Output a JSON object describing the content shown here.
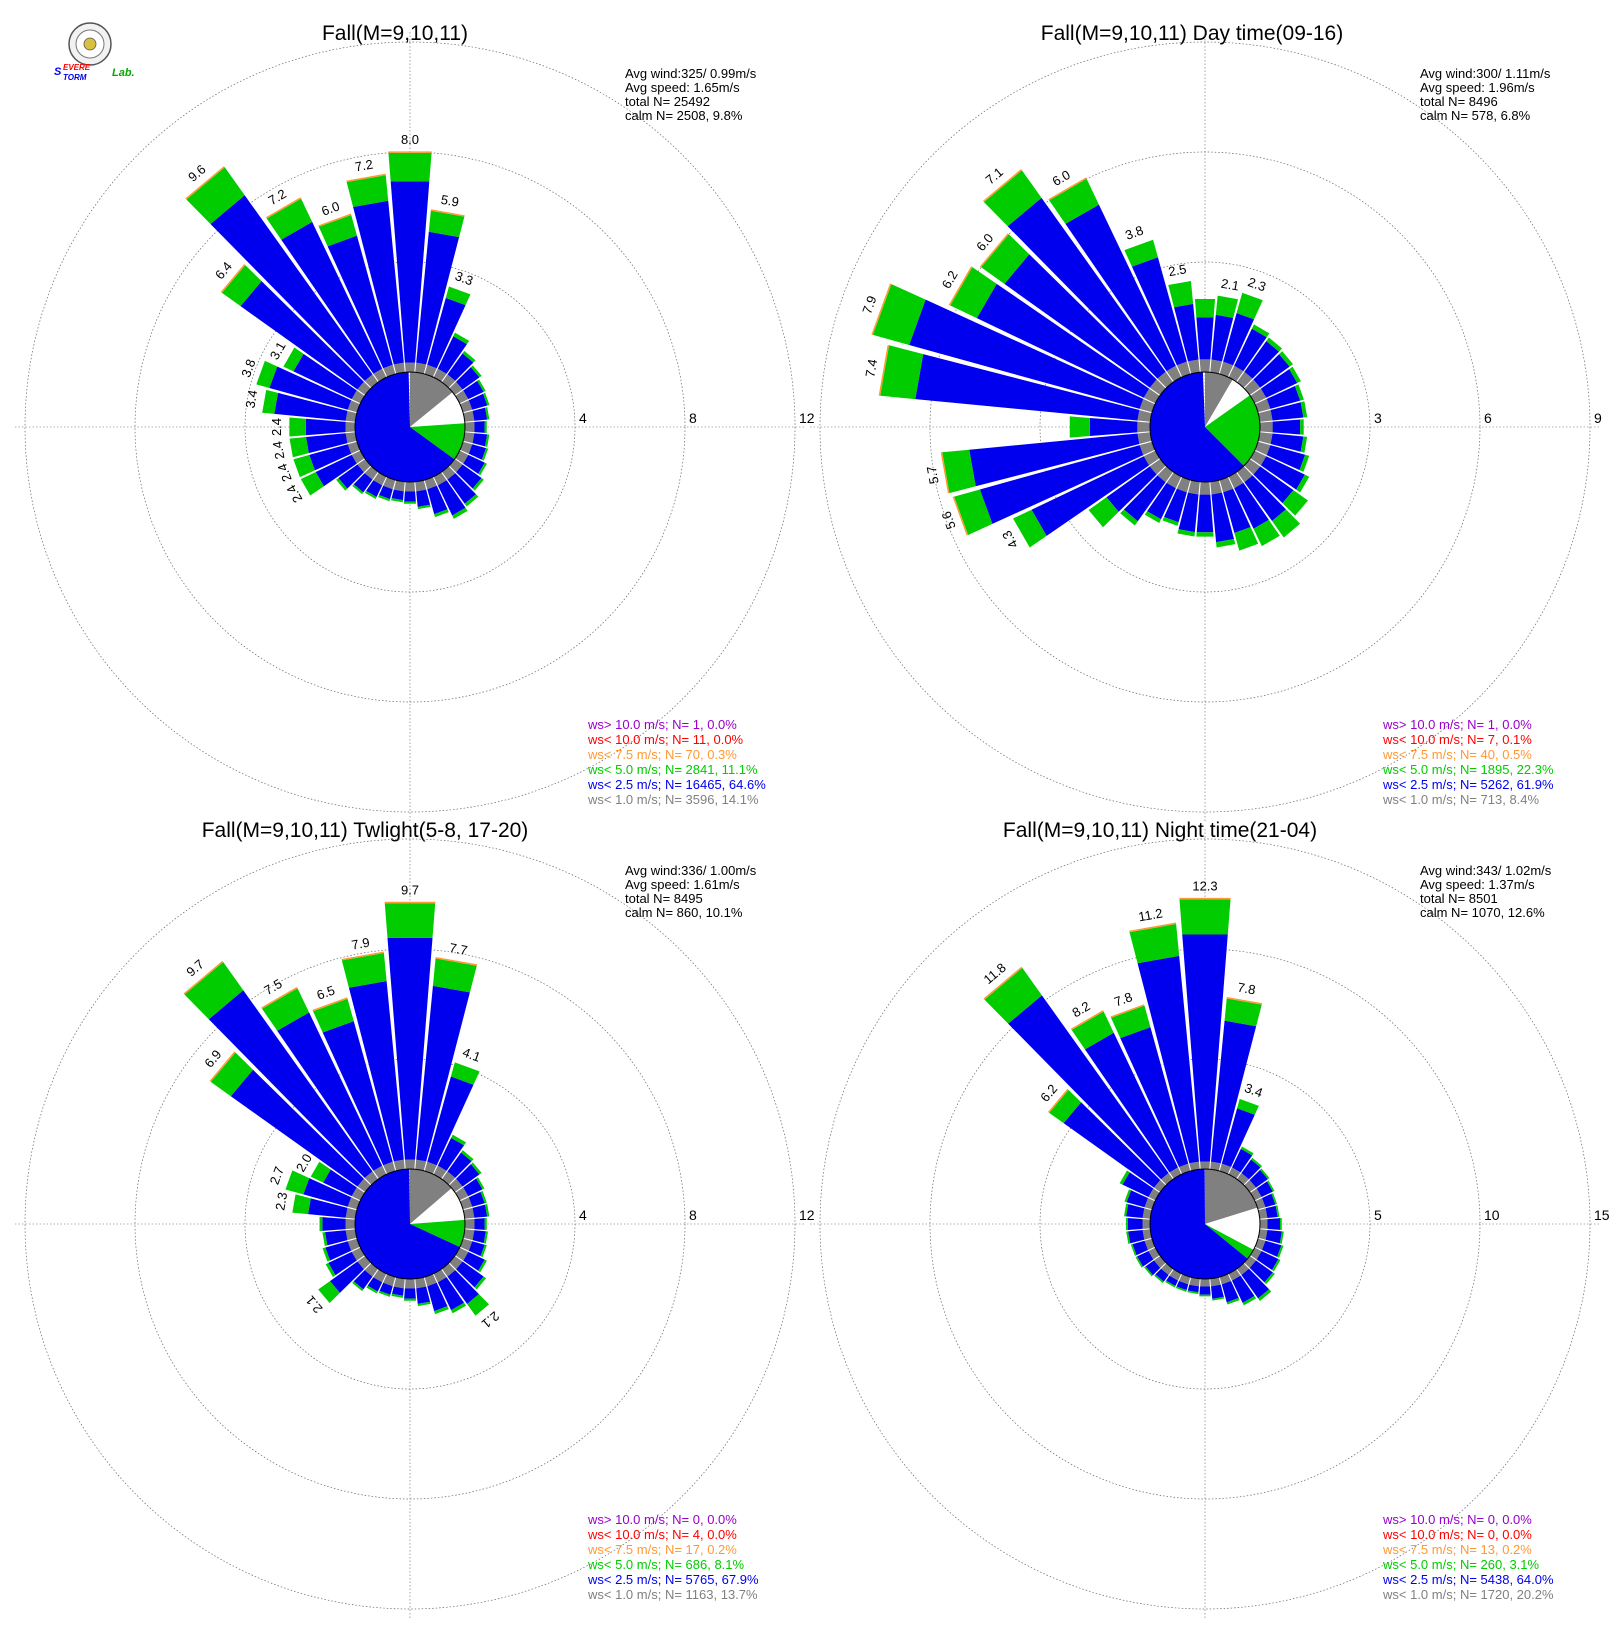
{
  "logo": {
    "text_s": "S",
    "text_severe": "EVERE",
    "text_storm": "TORM",
    "text_lab": "Lab."
  },
  "colors": {
    "gt10": "#9900cc",
    "lt10": "#ff0000",
    "lt75": "#ff9933",
    "lt5": "#00cc00",
    "lt25": "#0000ee",
    "lt1": "#808080",
    "ring": "#666666"
  },
  "chart_data": [
    {
      "type": "polar-bar",
      "title": "Fall(M=9,10,11)",
      "stats": {
        "avg_wind": "Avg wind:325/ 0.99m/s",
        "avg_speed": "Avg speed: 1.65m/s",
        "total": "total N=       25492",
        "calm": "calm N=   2508,   9.8%"
      },
      "rmax": 12,
      "ticks": [
        "4",
        "8",
        "12"
      ],
      "legend": [
        "ws> 10.0 m/s; N=     1,  0.0%",
        "ws< 10.0 m/s; N=    11,  0.0%",
        "ws<  7.5 m/s; N=    70,  0.3%",
        "ws<  5.0 m/s; N=  2841, 11.1%",
        "ws<  2.5 m/s; N= 16465, 64.6%",
        "ws<  1.0 m/s; N=  3596, 14.1%"
      ],
      "pie": {
        "gray": 14.1,
        "white": 9.8,
        "green": 11.1,
        "blue": 64.6
      },
      "bars": [
        {
          "dir": 0,
          "total": 8.0,
          "label": "8.0"
        },
        {
          "dir": 10,
          "total": 5.9,
          "label": "5.9"
        },
        {
          "dir": 20,
          "total": 3.3,
          "label": "3.3"
        },
        {
          "dir": 30,
          "total": 1.8
        },
        {
          "dir": 40,
          "total": 1.4
        },
        {
          "dir": 50,
          "total": 1.2
        },
        {
          "dir": 60,
          "total": 1.05
        },
        {
          "dir": 70,
          "total": 1.0
        },
        {
          "dir": 80,
          "total": 0.9
        },
        {
          "dir": 90,
          "total": 0.8
        },
        {
          "dir": 100,
          "total": 0.9
        },
        {
          "dir": 110,
          "total": 0.95
        },
        {
          "dir": 120,
          "total": 1.1
        },
        {
          "dir": 130,
          "total": 1.3
        },
        {
          "dir": 140,
          "total": 1.55
        },
        {
          "dir": 150,
          "total": 1.7
        },
        {
          "dir": 160,
          "total": 1.4
        },
        {
          "dir": 170,
          "total": 1.0
        },
        {
          "dir": 180,
          "total": 0.8
        },
        {
          "dir": 190,
          "total": 0.75
        },
        {
          "dir": 200,
          "total": 0.8
        },
        {
          "dir": 210,
          "total": 0.9
        },
        {
          "dir": 220,
          "total": 1.0
        },
        {
          "dir": 230,
          "total": 1.3
        },
        {
          "dir": 240,
          "total": 2.4,
          "label": "2.4"
        },
        {
          "dir": 250,
          "total": 2.4,
          "label": "2.4"
        },
        {
          "dir": 260,
          "total": 2.4,
          "label": "2.4"
        },
        {
          "dir": 270,
          "total": 2.4,
          "label": "2.4"
        },
        {
          "dir": 280,
          "total": 3.4,
          "label": "3.4"
        },
        {
          "dir": 290,
          "total": 3.8,
          "label": "3.8"
        },
        {
          "dir": 300,
          "total": 3.1,
          "label": "3.1"
        },
        {
          "dir": 310,
          "total": 6.4,
          "label": "6.4"
        },
        {
          "dir": 320,
          "total": 9.6,
          "label": "9.6"
        },
        {
          "dir": 330,
          "total": 7.2,
          "label": "7.2"
        },
        {
          "dir": 340,
          "total": 6.0,
          "label": "6.0"
        },
        {
          "dir": 350,
          "total": 7.2,
          "label": "7.2"
        }
      ]
    },
    {
      "type": "polar-bar",
      "title": "Fall(M=9,10,11) Day time(09-16)",
      "stats": {
        "avg_wind": "Avg wind:300/ 1.11m/s",
        "avg_speed": "Avg speed: 1.96m/s",
        "total": "total N=         8496",
        "calm": "calm N=     578,   6.8%"
      },
      "rmax": 9,
      "ticks": [
        "3",
        "6",
        "9"
      ],
      "legend": [
        "ws> 10.0 m/s; N=     1,  0.0%",
        "ws< 10.0 m/s; N=     7,  0.1%",
        "ws<  7.5 m/s; N=    40,  0.5%",
        "ws<  5.0 m/s; N=  1895, 22.3%",
        "ws<  2.5 m/s; N=  5262, 61.9%",
        "ws<  1.0 m/s; N=   713,  8.4%"
      ],
      "pie": {
        "gray": 8.4,
        "white": 6.8,
        "green": 22.3,
        "blue": 61.9
      },
      "bars": [
        {
          "dir": 0,
          "total": 2.0
        },
        {
          "dir": 10,
          "total": 2.1,
          "label": "2.1"
        },
        {
          "dir": 20,
          "total": 2.3,
          "label": "2.3"
        },
        {
          "dir": 30,
          "total": 1.6
        },
        {
          "dir": 40,
          "total": 1.5
        },
        {
          "dir": 50,
          "total": 1.45
        },
        {
          "dir": 60,
          "total": 1.4
        },
        {
          "dir": 70,
          "total": 1.3
        },
        {
          "dir": 80,
          "total": 1.3
        },
        {
          "dir": 90,
          "total": 1.2
        },
        {
          "dir": 100,
          "total": 1.3
        },
        {
          "dir": 110,
          "total": 1.45
        },
        {
          "dir": 120,
          "total": 1.65
        },
        {
          "dir": 130,
          "total": 1.95
        },
        {
          "dir": 140,
          "total": 2.2
        },
        {
          "dir": 150,
          "total": 2.1
        },
        {
          "dir": 160,
          "total": 2.0
        },
        {
          "dir": 170,
          "total": 1.8
        },
        {
          "dir": 180,
          "total": 1.5
        },
        {
          "dir": 190,
          "total": 1.5
        },
        {
          "dir": 200,
          "total": 1.3
        },
        {
          "dir": 210,
          "total": 1.4
        },
        {
          "dir": 220,
          "total": 1.8
        },
        {
          "dir": 230,
          "total": 2.4
        },
        {
          "dir": 240,
          "total": 4.3,
          "label": "4.3"
        },
        {
          "dir": 250,
          "total": 5.6,
          "label": "5.6"
        },
        {
          "dir": 260,
          "total": 5.7,
          "label": "5.7"
        },
        {
          "dir": 270,
          "total": 2.2
        },
        {
          "dir": 280,
          "total": 7.4,
          "label": "7.4"
        },
        {
          "dir": 290,
          "total": 7.9,
          "label": "7.9"
        },
        {
          "dir": 300,
          "total": 6.2,
          "label": "6.2"
        },
        {
          "dir": 310,
          "total": 6.0,
          "label": "6.0"
        },
        {
          "dir": 320,
          "total": 7.1,
          "label": "7.1"
        },
        {
          "dir": 330,
          "total": 6.0,
          "label": "6.0"
        },
        {
          "dir": 340,
          "total": 3.8,
          "label": "3.8"
        },
        {
          "dir": 350,
          "total": 2.5,
          "label": "2.5"
        }
      ]
    },
    {
      "type": "polar-bar",
      "title": "Fall(M=9,10,11) Twlight(5-8, 17-20)",
      "stats": {
        "avg_wind": "Avg wind:336/ 1.00m/s",
        "avg_speed": "Avg speed: 1.61m/s",
        "total": "total N=         8495",
        "calm": "calm N=     860,  10.1%"
      },
      "rmax": 12,
      "ticks": [
        "4",
        "8",
        "12"
      ],
      "legend": [
        "ws> 10.0 m/s; N=     0,  0.0%",
        "ws< 10.0 m/s; N=     4,  0.0%",
        "ws<  7.5 m/s; N=    17,  0.2%",
        "ws<  5.0 m/s; N=   686,  8.1%",
        "ws<  2.5 m/s; N=  5765, 67.9%",
        "ws<  1.0 m/s; N=  1163, 13.7%"
      ],
      "pie": {
        "gray": 13.7,
        "white": 10.1,
        "green": 8.1,
        "blue": 67.9
      },
      "bars": [
        {
          "dir": 0,
          "total": 9.7,
          "label": "9.7"
        },
        {
          "dir": 10,
          "total": 7.7,
          "label": "7.7"
        },
        {
          "dir": 20,
          "total": 4.1,
          "label": "4.1"
        },
        {
          "dir": 30,
          "total": 1.6
        },
        {
          "dir": 40,
          "total": 1.3
        },
        {
          "dir": 50,
          "total": 1.2
        },
        {
          "dir": 60,
          "total": 1.0
        },
        {
          "dir": 70,
          "total": 0.9
        },
        {
          "dir": 80,
          "total": 0.9
        },
        {
          "dir": 90,
          "total": 0.8
        },
        {
          "dir": 100,
          "total": 0.85
        },
        {
          "dir": 110,
          "total": 0.9
        },
        {
          "dir": 120,
          "total": 1.1
        },
        {
          "dir": 130,
          "total": 1.4
        },
        {
          "dir": 140,
          "total": 2.1,
          "label": "2.1"
        },
        {
          "dir": 150,
          "total": 1.6
        },
        {
          "dir": 160,
          "total": 1.4
        },
        {
          "dir": 170,
          "total": 1.0
        },
        {
          "dir": 180,
          "total": 0.8
        },
        {
          "dir": 190,
          "total": 0.7
        },
        {
          "dir": 200,
          "total": 0.75
        },
        {
          "dir": 210,
          "total": 0.8
        },
        {
          "dir": 220,
          "total": 1.0
        },
        {
          "dir": 230,
          "total": 2.1,
          "label": "2.1"
        },
        {
          "dir": 240,
          "total": 1.4
        },
        {
          "dir": 250,
          "total": 1.3
        },
        {
          "dir": 260,
          "total": 1.2
        },
        {
          "dir": 270,
          "total": 1.3
        },
        {
          "dir": 280,
          "total": 2.3,
          "label": "2.3"
        },
        {
          "dir": 290,
          "total": 2.7,
          "label": "2.7"
        },
        {
          "dir": 300,
          "total": 2.0,
          "label": "2.0"
        },
        {
          "dir": 310,
          "total": 6.9,
          "label": "6.9"
        },
        {
          "dir": 320,
          "total": 9.7,
          "label": "9.7"
        },
        {
          "dir": 330,
          "total": 7.5,
          "label": "7.5"
        },
        {
          "dir": 340,
          "total": 6.5,
          "label": "6.5"
        },
        {
          "dir": 350,
          "total": 7.9,
          "label": "7.9"
        }
      ]
    },
    {
      "type": "polar-bar",
      "title": "Fall(M=9,10,11) Night time(21-04)",
      "stats": {
        "avg_wind": "Avg wind:343/ 1.02m/s",
        "avg_speed": "Avg speed: 1.37m/s",
        "total": "total N=         8501",
        "calm": "calm N=   1070,  12.6%"
      },
      "rmax": 15,
      "ticks": [
        "5",
        "10",
        "15"
      ],
      "legend": [
        "ws> 10.0 m/s; N=     0,  0.0%",
        "ws< 10.0 m/s; N=     0,  0.0%",
        "ws<  7.5 m/s; N=    13,  0.2%",
        "ws<  5.0 m/s; N=   260,  3.1%",
        "ws<  2.5 m/s; N=  5438, 64.0%",
        "ws<  1.0 m/s; N=  1720, 20.2%"
      ],
      "pie": {
        "gray": 20.2,
        "white": 12.6,
        "green": 3.1,
        "blue": 64.0
      },
      "bars": [
        {
          "dir": 0,
          "total": 12.3,
          "label": "12.3"
        },
        {
          "dir": 10,
          "total": 7.8,
          "label": "7.8"
        },
        {
          "dir": 20,
          "total": 3.4,
          "label": "3.4"
        },
        {
          "dir": 30,
          "total": 1.4
        },
        {
          "dir": 40,
          "total": 1.2
        },
        {
          "dir": 50,
          "total": 1.1
        },
        {
          "dir": 60,
          "total": 1.0
        },
        {
          "dir": 70,
          "total": 0.9
        },
        {
          "dir": 80,
          "total": 0.9
        },
        {
          "dir": 90,
          "total": 1.0
        },
        {
          "dir": 100,
          "total": 1.1
        },
        {
          "dir": 110,
          "total": 1.2
        },
        {
          "dir": 120,
          "total": 1.3
        },
        {
          "dir": 130,
          "total": 1.4
        },
        {
          "dir": 140,
          "total": 1.8
        },
        {
          "dir": 150,
          "total": 1.6
        },
        {
          "dir": 160,
          "total": 1.3
        },
        {
          "dir": 170,
          "total": 1.0
        },
        {
          "dir": 180,
          "total": 0.8
        },
        {
          "dir": 190,
          "total": 0.7
        },
        {
          "dir": 200,
          "total": 0.7
        },
        {
          "dir": 210,
          "total": 0.7
        },
        {
          "dir": 220,
          "total": 0.8
        },
        {
          "dir": 230,
          "total": 0.9
        },
        {
          "dir": 240,
          "total": 1.0
        },
        {
          "dir": 250,
          "total": 1.0
        },
        {
          "dir": 260,
          "total": 1.1
        },
        {
          "dir": 270,
          "total": 1.1
        },
        {
          "dir": 280,
          "total": 1.2
        },
        {
          "dir": 290,
          "total": 1.3
        },
        {
          "dir": 300,
          "total": 1.8
        },
        {
          "dir": 310,
          "total": 6.2,
          "label": "6.2"
        },
        {
          "dir": 320,
          "total": 11.8,
          "label": "11.8"
        },
        {
          "dir": 330,
          "total": 8.2,
          "label": "8.2"
        },
        {
          "dir": 340,
          "total": 7.8,
          "label": "7.8"
        },
        {
          "dir": 350,
          "total": 11.2,
          "label": "11.2"
        }
      ]
    }
  ]
}
